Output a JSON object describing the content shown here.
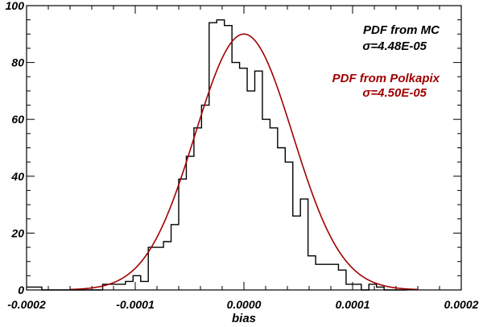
{
  "chart_data": {
    "type": "line",
    "title": "",
    "xlabel": "bias",
    "ylabel": "",
    "xlim": [
      -0.0002,
      0.0002
    ],
    "ylim": [
      0,
      100
    ],
    "x_ticks": [
      -0.0002,
      -0.0001,
      0.0,
      0.0001,
      0.0002
    ],
    "x_tick_labels": [
      "-0.0002",
      "-0.0001",
      "0.0000",
      "0.0001",
      "0.0002"
    ],
    "y_ticks": [
      0,
      20,
      40,
      60,
      80,
      100
    ],
    "y_tick_labels": [
      "0",
      "20",
      "40",
      "60",
      "80",
      "100"
    ],
    "grid": false,
    "colors": {
      "histogram": "#000000",
      "gaussian": "#a00000",
      "axes": "#000000"
    },
    "series": [
      {
        "name": "PDF from MC",
        "style": "step",
        "x": [
          -0.0002,
          -0.000193,
          -0.000186,
          -0.000179,
          -0.000172,
          -0.000165,
          -0.000158,
          -0.000151,
          -0.000144,
          -0.000137,
          -0.00013,
          -0.000123,
          -0.000116,
          -0.000109,
          -0.000102,
          -9.5e-05,
          -8.8e-05,
          -8.1e-05,
          -7.4e-05,
          -6.7e-05,
          -6e-05,
          -5.3e-05,
          -4.6e-05,
          -3.9e-05,
          -3.2e-05,
          -2.5e-05,
          -1.8e-05,
          -1.1e-05,
          -4e-06,
          3e-06,
          1e-05,
          1.7e-05,
          2.4e-05,
          3.1e-05,
          3.8e-05,
          4.5e-05,
          5.2e-05,
          5.9e-05,
          6.6e-05,
          7.3e-05,
          8e-05,
          8.7e-05,
          9.4e-05,
          0.000101,
          0.000108,
          0.000115,
          0.000122,
          0.000129,
          0.000136,
          0.000143
        ],
        "values": [
          1,
          1,
          0,
          0,
          0,
          0,
          0,
          0,
          0,
          0,
          2,
          2,
          2,
          3,
          5,
          3,
          15,
          15,
          17,
          23,
          39,
          47,
          57,
          65,
          94,
          95,
          93,
          80,
          78,
          70,
          77,
          60,
          57,
          50,
          45,
          26,
          32,
          12,
          9,
          9,
          9,
          7,
          2,
          2,
          0,
          2,
          1,
          0,
          0,
          0
        ]
      },
      {
        "name": "PDF from Polkapix",
        "style": "curve",
        "gaussian": {
          "amplitude": 90,
          "mean": 0.0,
          "sigma": 4.5e-05
        }
      }
    ],
    "annotations": [
      {
        "text": "PDF from MC",
        "color": "#000000"
      },
      {
        "text": "σ=4.48E-05",
        "color": "#000000"
      },
      {
        "text": "PDF from Polkapix",
        "color": "#a00000"
      },
      {
        "text": "σ=4.50E-05",
        "color": "#a00000"
      }
    ]
  }
}
